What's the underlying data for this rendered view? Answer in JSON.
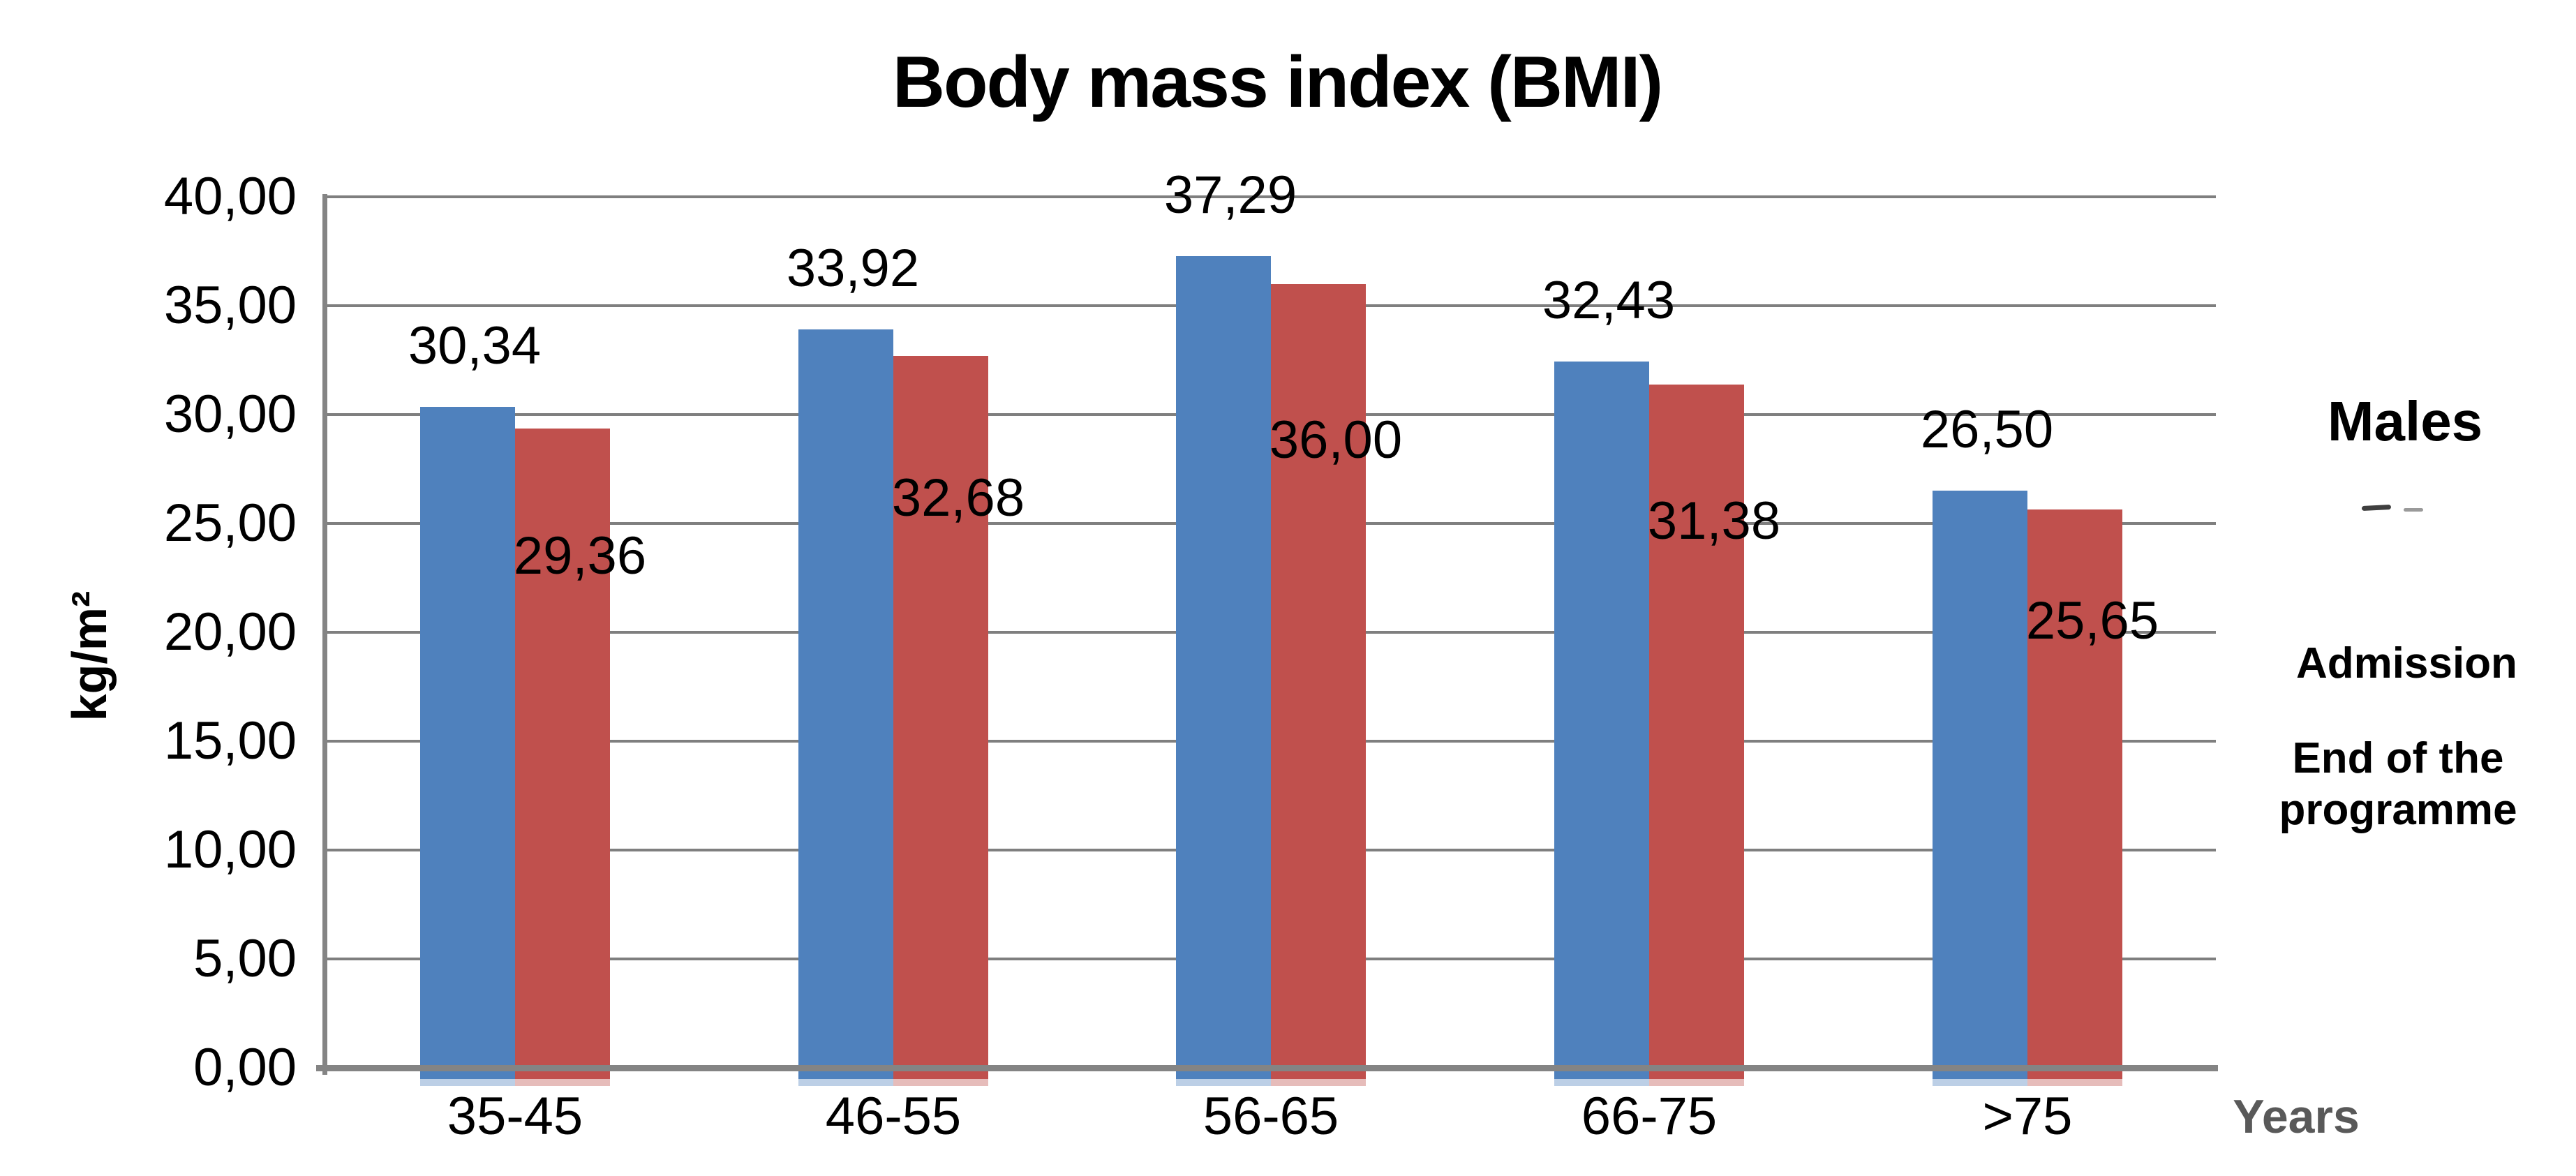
{
  "chart_data": {
    "type": "bar",
    "title": "Body mass index (BMI)",
    "ylabel": "kg/m²",
    "xlabel": "Years",
    "legend_title": "Males",
    "legend_position": "right",
    "grid": true,
    "ylim": [
      0,
      40
    ],
    "ytick_step": 5,
    "ytick_labels": [
      "40,00",
      "35,00",
      "30,00",
      "25,00",
      "20,00",
      "15,00",
      "10,00",
      "5,00",
      "0,00"
    ],
    "categories": [
      "35-45",
      "46-55",
      "56-65",
      "66-75",
      ">75"
    ],
    "series": [
      {
        "name": "Admission",
        "color": "#4f81bd",
        "tail_color": "#bccfe6",
        "values": [
          30.34,
          33.92,
          37.29,
          32.43,
          26.5
        ],
        "value_labels": [
          "30,34",
          "33,92",
          "37,29",
          "32,43",
          "26,50"
        ]
      },
      {
        "name": "End of the programme",
        "color": "#c0504d",
        "tail_color": "#e6bcba",
        "values": [
          29.36,
          32.68,
          36.0,
          31.38,
          25.65
        ],
        "value_labels": [
          "29,36",
          "32,68",
          "36,00",
          "31,38",
          "25,65"
        ]
      }
    ],
    "colors": {
      "gridline": "#7f7f7f",
      "axis": "#848484",
      "xlabel_color": "#595959",
      "text": "#000000"
    }
  }
}
